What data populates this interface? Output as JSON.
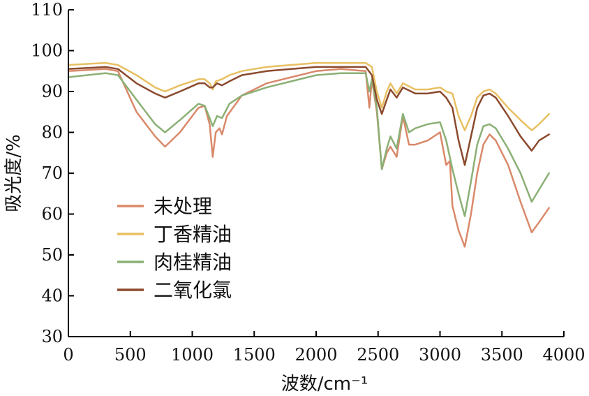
{
  "chart_data": {
    "type": "line",
    "title": "",
    "xlabel": "波数/cm⁻¹",
    "ylabel": "吸光度/%",
    "xlim": [
      0,
      4000
    ],
    "ylim": [
      30,
      110
    ],
    "x_ticks": [
      0,
      500,
      1000,
      1500,
      2000,
      2500,
      3000,
      3500,
      4000
    ],
    "x_tick_labels": [
      "0",
      "500",
      "1000",
      "1500",
      "2000",
      "2500",
      "3000",
      "3500",
      "4000"
    ],
    "y_ticks": [
      30,
      40,
      50,
      60,
      70,
      80,
      90,
      100,
      110
    ],
    "y_tick_labels": [
      "30",
      "40",
      "50",
      "60",
      "70",
      "80",
      "90",
      "100",
      "110"
    ],
    "grid": false,
    "legend_position": "left-center",
    "series": [
      {
        "name": "未处理",
        "color": "#d9896a",
        "x": [
          0,
          300,
          400,
          550,
          700,
          780,
          900,
          1050,
          1100,
          1140,
          1165,
          1190,
          1220,
          1240,
          1280,
          1400,
          1600,
          1800,
          2000,
          2200,
          2400,
          2430,
          2450,
          2490,
          2530,
          2570,
          2600,
          2650,
          2700,
          2750,
          2800,
          2900,
          3000,
          3050,
          3080,
          3100,
          3150,
          3200,
          3250,
          3300,
          3350,
          3400,
          3450,
          3550,
          3650,
          3740,
          3800,
          3880
        ],
        "values": [
          95,
          95.5,
          95,
          85,
          79,
          76.5,
          80,
          86,
          86.5,
          82,
          74,
          80,
          81,
          79.5,
          84,
          89,
          92,
          93.5,
          95,
          95.5,
          95,
          86,
          93,
          85,
          71,
          75,
          76.5,
          74,
          84,
          77,
          77,
          78,
          80,
          72,
          73,
          62,
          56,
          52,
          60,
          70,
          77,
          79.5,
          78,
          72,
          63,
          55.5,
          58,
          61.5
        ]
      },
      {
        "name": "丁香精油",
        "color": "#e8c063",
        "x": [
          0,
          300,
          400,
          550,
          700,
          780,
          900,
          1050,
          1100,
          1140,
          1165,
          1190,
          1240,
          1300,
          1400,
          1600,
          1800,
          2000,
          2200,
          2400,
          2450,
          2490,
          2530,
          2570,
          2600,
          2650,
          2700,
          2800,
          2900,
          3000,
          3050,
          3100,
          3150,
          3200,
          3250,
          3300,
          3350,
          3400,
          3450,
          3550,
          3650,
          3740,
          3800,
          3880
        ],
        "values": [
          96.5,
          97,
          96.5,
          94,
          91,
          90,
          91.5,
          93,
          93,
          92,
          90.5,
          92.5,
          93,
          94,
          95,
          96,
          96.5,
          97,
          97,
          97,
          96,
          90,
          86,
          90,
          92,
          89.5,
          92,
          90.5,
          90.5,
          91,
          90,
          89.5,
          84,
          80.5,
          84,
          88.5,
          90,
          90.5,
          89.5,
          86,
          83,
          80.5,
          82,
          84.5
        ]
      },
      {
        "name": "肉桂精油",
        "color": "#8bb075",
        "x": [
          0,
          300,
          400,
          550,
          700,
          780,
          900,
          1050,
          1100,
          1140,
          1165,
          1200,
          1240,
          1300,
          1400,
          1600,
          1800,
          2000,
          2200,
          2400,
          2430,
          2450,
          2490,
          2530,
          2570,
          2600,
          2650,
          2700,
          2750,
          2800,
          2900,
          3000,
          3050,
          3100,
          3150,
          3200,
          3250,
          3300,
          3350,
          3400,
          3450,
          3550,
          3650,
          3740,
          3800,
          3880
        ],
        "values": [
          93.5,
          94.5,
          94,
          88,
          82,
          80,
          83,
          87,
          86.5,
          83.5,
          81.5,
          84,
          83.5,
          87,
          89,
          91,
          92.5,
          94,
          94.5,
          94.5,
          90,
          93,
          86,
          71,
          76,
          79,
          76,
          84.5,
          80,
          81,
          82,
          82.5,
          78,
          71,
          65,
          59.5,
          68,
          77,
          81.5,
          82,
          81,
          76,
          70,
          63,
          66,
          70
        ]
      },
      {
        "name": "二氧化氯",
        "color": "#8b4a2e",
        "x": [
          0,
          300,
          400,
          550,
          700,
          780,
          900,
          1050,
          1100,
          1140,
          1165,
          1200,
          1240,
          1300,
          1400,
          1600,
          1800,
          2000,
          2200,
          2400,
          2450,
          2490,
          2530,
          2570,
          2600,
          2650,
          2700,
          2800,
          2900,
          3000,
          3050,
          3100,
          3150,
          3200,
          3250,
          3300,
          3350,
          3400,
          3450,
          3550,
          3650,
          3740,
          3800,
          3880
        ],
        "values": [
          95.5,
          96,
          95.5,
          92,
          89.5,
          88.5,
          90,
          92,
          92,
          91,
          91,
          92,
          91.5,
          92.5,
          94,
          95,
          95.5,
          96,
          96,
          96,
          94,
          88,
          84.5,
          88,
          90.5,
          88.5,
          91,
          89.5,
          89.5,
          90,
          88.5,
          86,
          78,
          72,
          79,
          86,
          89,
          89.5,
          88.5,
          84,
          79,
          75.5,
          78,
          79.5
        ]
      }
    ]
  }
}
